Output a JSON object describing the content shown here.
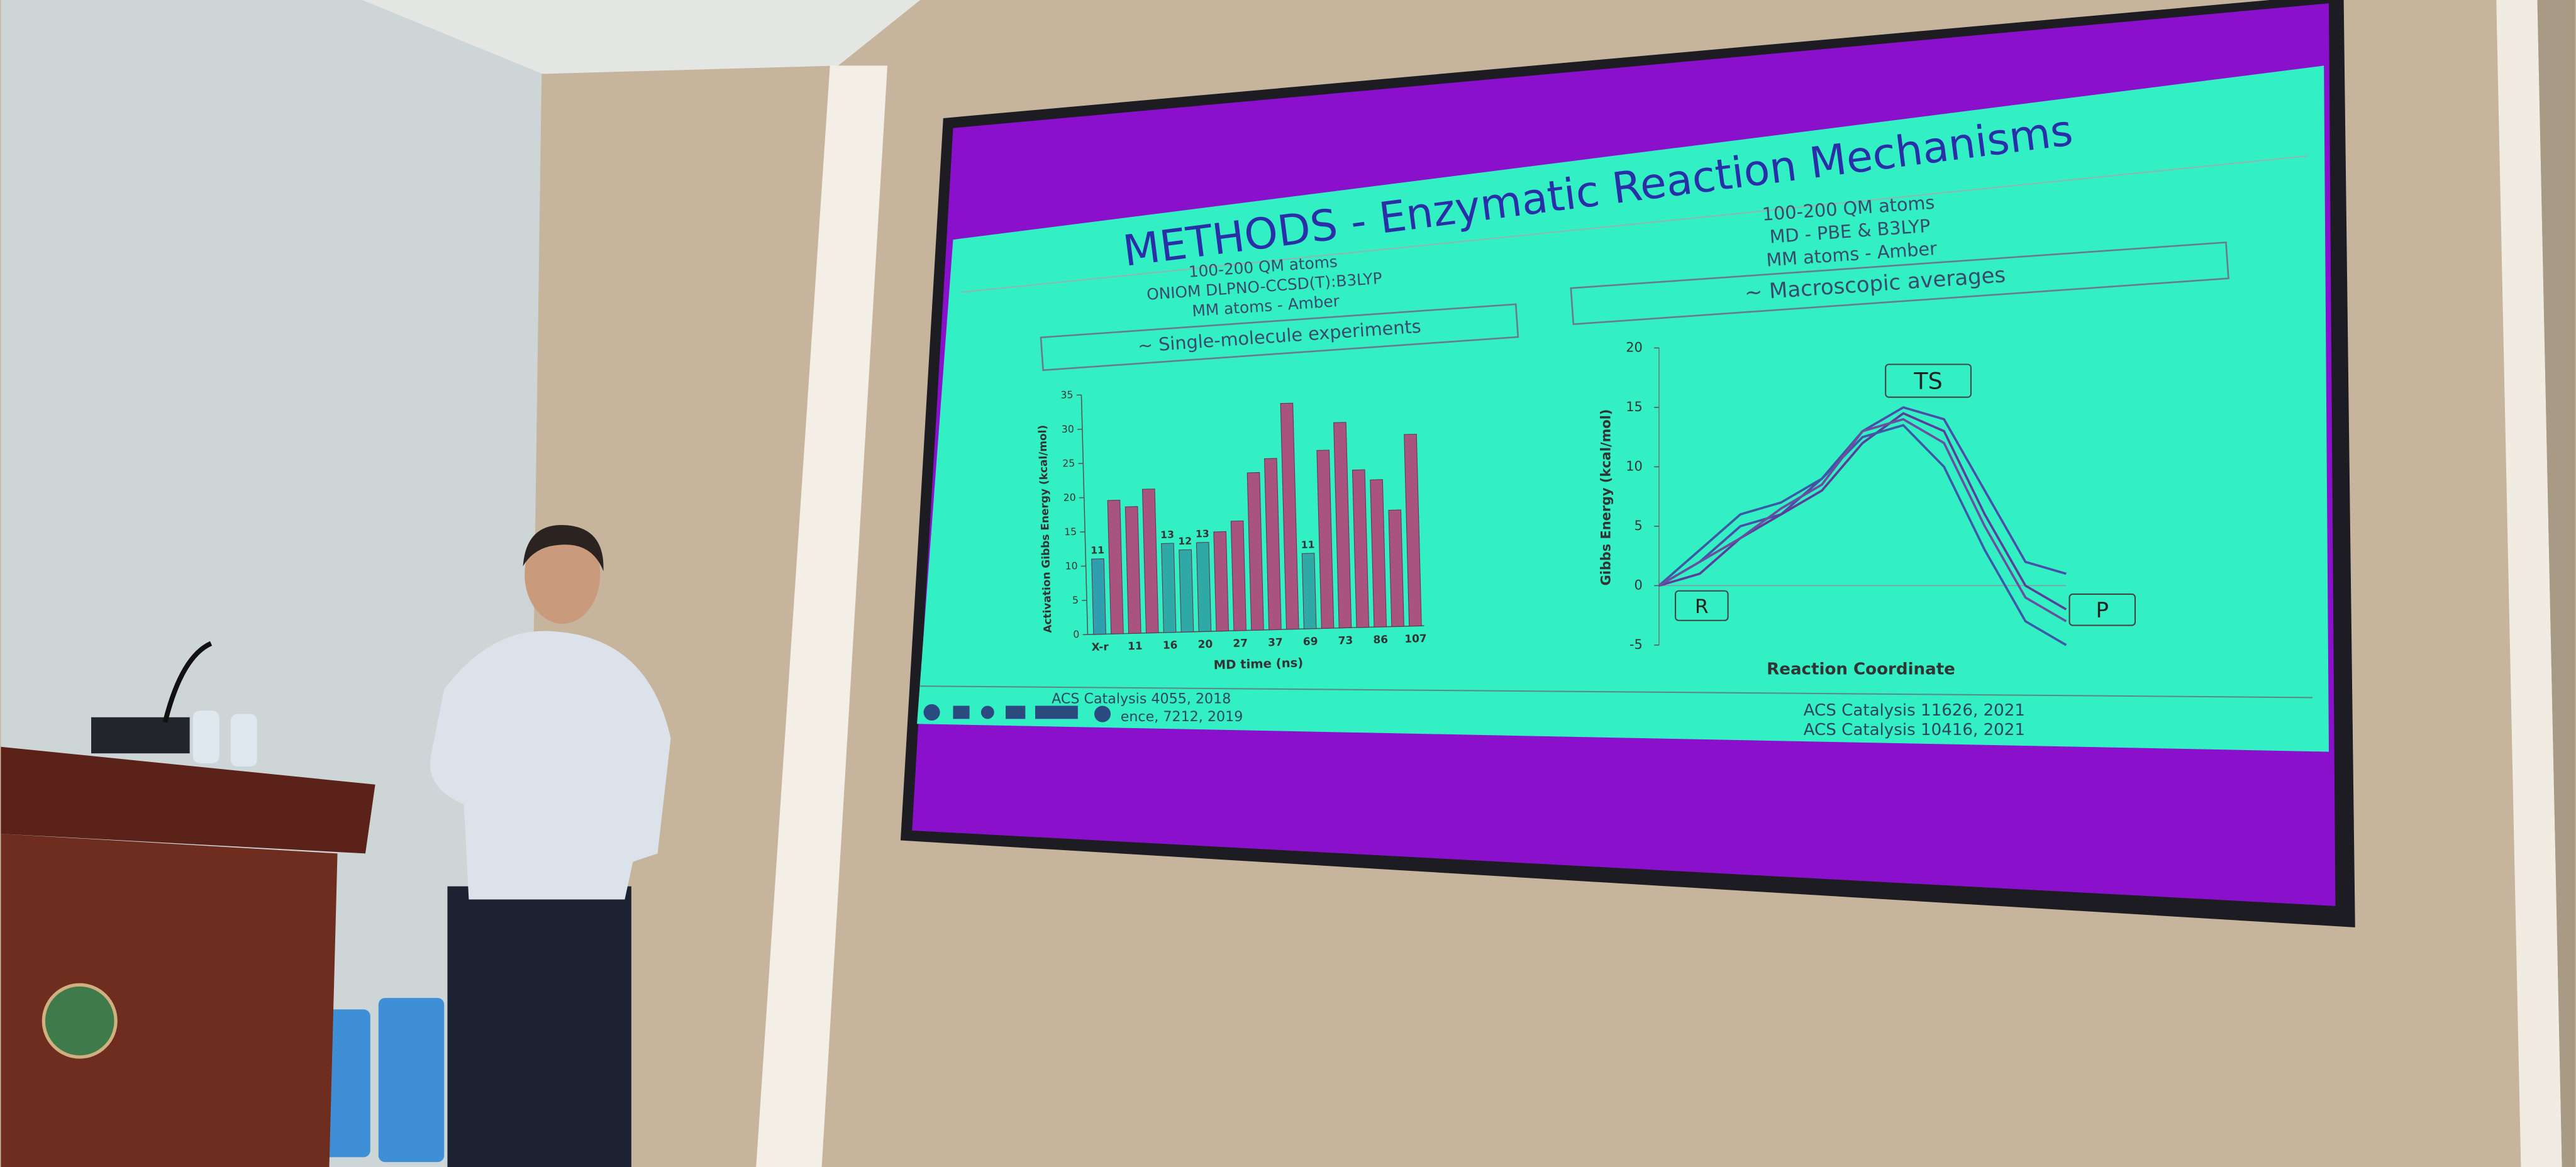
{
  "slide": {
    "title": "METHODS - Enzymatic Reaction Mechanisms",
    "left": {
      "lines": [
        "100-200 QM atoms",
        "ONIOM DLPNO-CCSD(T):B3LYP",
        "MM atoms - Amber"
      ],
      "box": "~ Single-molecule experiments"
    },
    "right": {
      "lines": [
        "100-200 QM atoms",
        "MD - PBE & B3LYP",
        "MM atoms - Amber"
      ],
      "box": "~ Macroscopic averages"
    },
    "bar_chart": {
      "type": "bar",
      "y_label": "Activation Gibbs Energy (kcal/mol)",
      "x_label": "MD time (ns)",
      "categories": [
        "X-r",
        null,
        "11",
        null,
        "16",
        null,
        "20",
        null,
        "27",
        null,
        "37",
        null,
        "69",
        null,
        "73",
        null,
        "86",
        null,
        "107"
      ],
      "values": [
        11,
        19.5,
        18.5,
        21,
        13,
        12,
        13,
        14.5,
        16,
        23,
        25,
        33,
        11,
        26,
        30,
        23,
        21.5,
        17,
        28
      ],
      "value_labels": [
        "11",
        null,
        null,
        null,
        "13",
        "12",
        "13",
        null,
        null,
        null,
        null,
        null,
        "11",
        null,
        null,
        null,
        null,
        null,
        null
      ],
      "colors": [
        "#2f9fb0",
        "#a8547f",
        "#a8547f",
        "#a8547f",
        "#2fa9a6",
        "#2fa9a6",
        "#2fa9a6",
        "#a8547f",
        "#a8547f",
        "#a8547f",
        "#a8547f",
        "#a8547f",
        "#2fa9a6",
        "#a8547f",
        "#a8547f",
        "#a8547f",
        "#a8547f",
        "#a8547f",
        "#a8547f"
      ],
      "ylim": [
        0,
        35
      ],
      "yticks": [
        0,
        5,
        10,
        15,
        20,
        25,
        30,
        35
      ]
    },
    "line_chart": {
      "type": "line",
      "y_label": "Gibbs Energy (kcal/mol)",
      "x_label": "Reaction Coordinate",
      "ylim": [
        -5,
        20
      ],
      "yticks": [
        -5,
        0,
        5,
        10,
        15,
        20
      ],
      "labels": [
        "TS",
        "R",
        "P"
      ],
      "series": [
        {
          "color": "#4a4ea8",
          "values": [
            0,
            2,
            5,
            6,
            9,
            13,
            15,
            14,
            8,
            2,
            1
          ]
        },
        {
          "color": "#5a3f9a",
          "values": [
            0,
            1,
            4,
            6,
            8,
            12,
            14.5,
            13,
            6,
            0,
            -2
          ]
        },
        {
          "color": "#3c58a6",
          "values": [
            0,
            3,
            6,
            7,
            9,
            12.5,
            13.5,
            10,
            3,
            -3,
            -5
          ]
        },
        {
          "color": "#6a4fa0",
          "values": [
            0,
            2,
            4,
            6.5,
            8.5,
            13,
            14,
            12,
            5,
            -1,
            -3
          ]
        }
      ]
    },
    "references_left": [
      "ACS Catalysis 4055, 2018",
      "ence, 7212, 2019"
    ],
    "references_right": [
      "ACS Catalysis 11626, 2021",
      "ACS Catalysis 10416, 2021"
    ]
  }
}
